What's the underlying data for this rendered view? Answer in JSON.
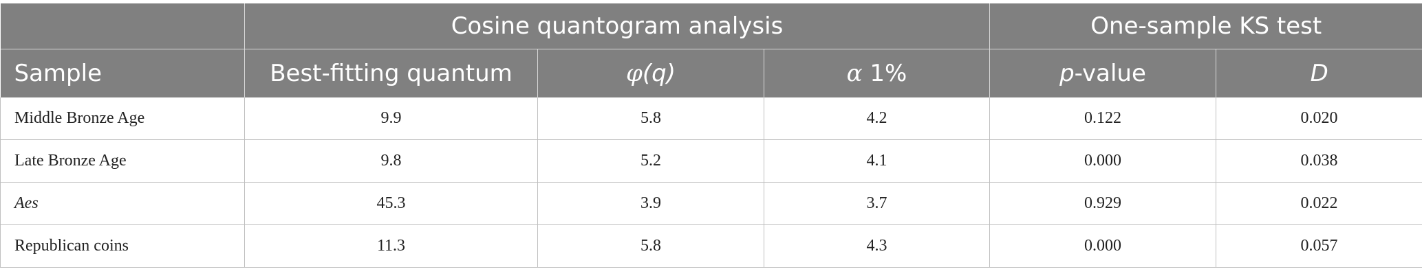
{
  "table": {
    "group_headers": {
      "blank": "",
      "cosine": "Cosine quantogram analysis",
      "ks": "One-sample KS test"
    },
    "column_headers": {
      "sample": "Sample",
      "quantum": "Best-fitting quantum",
      "phi_symbol": "φ",
      "phi_arg": "(q)",
      "alpha_symbol": "α",
      "alpha_rest": " 1%",
      "p_symbol": "p",
      "p_rest": "-value",
      "d": "D"
    },
    "rows": [
      {
        "sample": "Middle Bronze Age",
        "italic": false,
        "quantum": "9.9",
        "phi": "5.8",
        "alpha": "4.2",
        "p": "0.122",
        "d": "0.020"
      },
      {
        "sample": "Late Bronze Age",
        "italic": false,
        "quantum": "9.8",
        "phi": "5.2",
        "alpha": "4.1",
        "p": "0.000",
        "d": "0.038"
      },
      {
        "sample": "Aes",
        "italic": true,
        "quantum": "45.3",
        "phi": "3.9",
        "alpha": "3.7",
        "p": "0.929",
        "d": "0.022"
      },
      {
        "sample": "Republican coins",
        "italic": false,
        "quantum": "11.3",
        "phi": "5.8",
        "alpha": "4.3",
        "p": "0.000",
        "d": "0.057"
      }
    ]
  },
  "colors": {
    "header_bg": "#808080",
    "header_text": "#ffffff",
    "grid": "#bfbfbf"
  }
}
